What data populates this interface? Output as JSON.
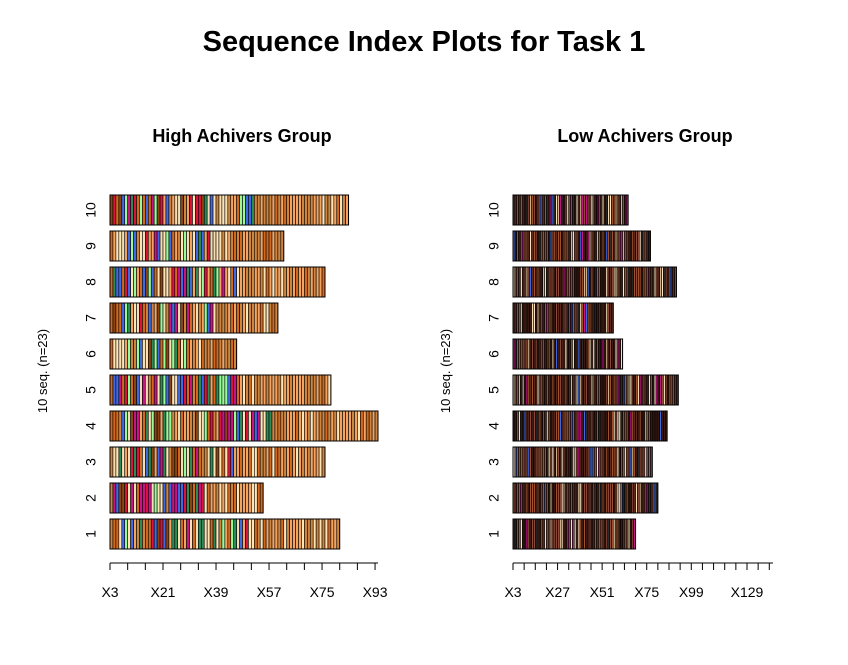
{
  "title": "Sequence Index Plots for Task 1",
  "chart_data": [
    {
      "type": "sequence-index",
      "title": "High Achivers Group",
      "ylabel": "10 seq. (n=23)",
      "sequence_labels": [
        "1",
        "2",
        "3",
        "4",
        "5",
        "6",
        "7",
        "8",
        "9",
        "10"
      ],
      "sequence_lengths": [
        78,
        52,
        73,
        91,
        75,
        43,
        57,
        73,
        59,
        81
      ],
      "x_tick_labels": [
        "X3",
        "X21",
        "X39",
        "X57",
        "X75",
        "X93"
      ],
      "x_tick_values": [
        3,
        21,
        39,
        57,
        75,
        93
      ],
      "xlim": [
        1,
        92
      ],
      "palette": [
        "#FFE4B5",
        "#F4A460",
        "#CD853F",
        "#D2691E",
        "#8B4513",
        "#DC143C",
        "#C71585",
        "#4169E1",
        "#2E8B57",
        "#98FB98",
        "#F5DEB3"
      ]
    },
    {
      "type": "sequence-index",
      "title": "Low Achivers Group",
      "ylabel": "10 seq. (n=23)",
      "sequence_labels": [
        "1",
        "2",
        "3",
        "4",
        "5",
        "6",
        "7",
        "8",
        "9",
        "10"
      ],
      "sequence_lengths": [
        66,
        78,
        75,
        83,
        89,
        59,
        54,
        88,
        74,
        62
      ],
      "x_tick_labels": [
        "X3",
        "X27",
        "X51",
        "X75",
        "X99",
        "X129"
      ],
      "x_tick_values": [
        3,
        27,
        51,
        75,
        99,
        129
      ],
      "xlim": [
        1,
        141
      ],
      "palette": [
        "#3B1A12",
        "#5C2A1C",
        "#8B4A3A",
        "#A0522D",
        "#D2B48C",
        "#F5DEB3",
        "#FFE4C4",
        "#C71585",
        "#4169E1",
        "#2E2E2E"
      ]
    }
  ]
}
